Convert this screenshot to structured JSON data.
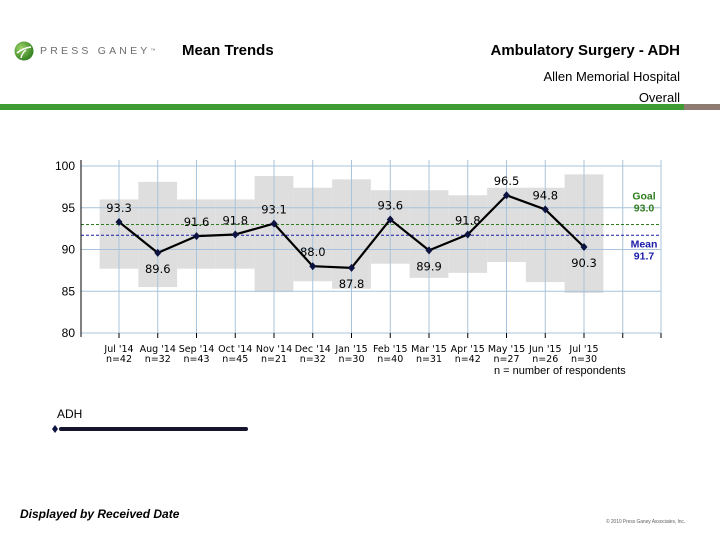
{
  "header": {
    "brand": "PRESS GANEY",
    "brand_tm": "™",
    "report_title": "Mean Trends",
    "survey": "Ambulatory Surgery - ADH",
    "hospital": "Allen Memorial Hospital",
    "scope": "Overall"
  },
  "colors": {
    "brand_green": "#3f9c35",
    "brand_brown": "#8e7b72",
    "series_line": "#000000",
    "marker": "#0d1340",
    "band": "#dedede",
    "grid": "#a8c4dc",
    "goal": "#2e7d1e",
    "mean": "#1a1aa8"
  },
  "chart_data": {
    "type": "line",
    "title": "Mean Trends",
    "xlabel": "",
    "ylabel": "",
    "ylim": [
      80,
      100
    ],
    "yticks": [
      "100",
      "95",
      "90",
      "85",
      "80"
    ],
    "ytick_values": [
      100,
      95,
      90,
      85,
      80
    ],
    "grid": true,
    "categories": [
      "Jul '14",
      "Aug '14",
      "Sep '14",
      "Oct '14",
      "Nov '14",
      "Dec '14",
      "Jan '15",
      "Feb '15",
      "Mar '15",
      "Apr '15",
      "May '15",
      "Jun '15",
      "Jul '15"
    ],
    "n_labels": [
      "n=42",
      "n=32",
      "n=43",
      "n=45",
      "n=21",
      "n=32",
      "n=30",
      "n=40",
      "n=31",
      "n=42",
      "n=27",
      "n=26",
      "n=30"
    ],
    "n_note": "n = number of respondents",
    "series": [
      {
        "name": "ADH",
        "values": [
          93.3,
          89.6,
          91.6,
          91.8,
          93.1,
          88.0,
          87.8,
          93.6,
          89.9,
          91.8,
          96.5,
          94.8,
          90.3
        ],
        "value_labels": [
          "93.3",
          "89.6",
          "91.6",
          "91.8",
          "93.1",
          "88.0",
          "87.8",
          "93.6",
          "89.9",
          "91.8",
          "96.5",
          "94.8",
          "90.3"
        ],
        "label_position": [
          "above",
          "below",
          "above",
          "above",
          "above",
          "above",
          "below",
          "above",
          "below",
          "above",
          "above",
          "above",
          "below"
        ]
      }
    ],
    "bands": {
      "upper": [
        96.0,
        98.1,
        96.0,
        96.0,
        98.8,
        97.4,
        98.4,
        97.1,
        97.1,
        96.5,
        97.4,
        97.4,
        99.0
      ],
      "lower": [
        87.7,
        85.5,
        87.7,
        87.7,
        84.9,
        86.2,
        85.3,
        88.3,
        86.6,
        87.2,
        88.5,
        86.1,
        84.8
      ]
    },
    "reference_lines": [
      {
        "name": "Goal",
        "label": "Goal",
        "value": 93.0,
        "value_label": "93.0",
        "style": "dashed"
      },
      {
        "name": "Mean",
        "label": "Mean",
        "value": 91.7,
        "value_label": "91.7",
        "style": "dashed"
      }
    ],
    "legend": {
      "label": "ADH",
      "placement": "bottom-left"
    }
  },
  "footer": {
    "note": "Displayed by Received Date",
    "copyright": "© 2010 Press Ganey Associates, Inc."
  }
}
